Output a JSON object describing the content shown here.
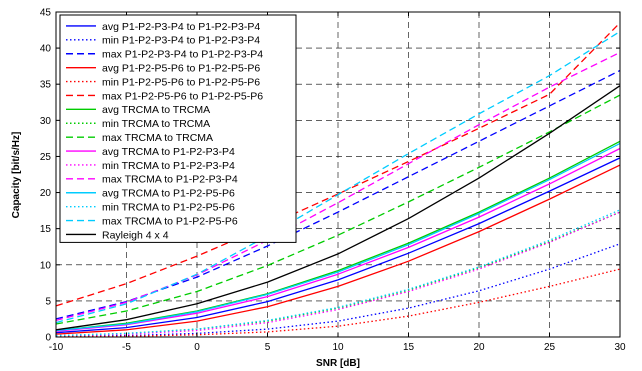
{
  "chart_data": {
    "type": "line",
    "title": "",
    "xlabel": "SNR [dB]",
    "ylabel": "Capacity [bit/s/Hz]",
    "xlim": [
      -10,
      30
    ],
    "ylim": [
      0,
      45
    ],
    "xticks": [
      -10,
      -5,
      0,
      5,
      10,
      15,
      20,
      25,
      30
    ],
    "yticks": [
      0,
      5,
      10,
      15,
      20,
      25,
      30,
      35,
      40,
      45
    ],
    "grid": true,
    "legend_position": "top-left",
    "x": [
      -10,
      -5,
      0,
      5,
      10,
      15,
      20,
      25,
      30
    ],
    "series": [
      {
        "name": "avg P1-P2-P3-P4 to P1-P2-P3-P4",
        "color": "#0000ff",
        "style": "solid",
        "values": [
          0.6,
          1.3,
          2.7,
          4.9,
          7.9,
          11.6,
          15.7,
          20.2,
          24.8
        ]
      },
      {
        "name": "min P1-P2-P3-P4 to P1-P2-P3-P4",
        "color": "#0000ff",
        "style": "dotted",
        "values": [
          0.1,
          0.2,
          0.5,
          1.1,
          2.2,
          4.0,
          6.4,
          9.4,
          12.9
        ]
      },
      {
        "name": "max P1-P2-P3-P4 to P1-P2-P3-P4",
        "color": "#0000ff",
        "style": "dashed",
        "values": [
          2.5,
          4.9,
          8.3,
          12.6,
          17.3,
          22.2,
          27.1,
          32.0,
          36.9
        ]
      },
      {
        "name": "avg P1-P2-P5-P6 to P1-P2-P5-P6",
        "color": "#ff0000",
        "style": "solid",
        "values": [
          0.4,
          1.0,
          2.2,
          4.2,
          7.0,
          10.5,
          14.6,
          19.1,
          23.8
        ]
      },
      {
        "name": "min P1-P2-P5-P6 to P1-P2-P5-P6",
        "color": "#ff0000",
        "style": "dotted",
        "values": [
          0.05,
          0.1,
          0.3,
          0.7,
          1.5,
          2.9,
          4.8,
          7.0,
          9.4
        ]
      },
      {
        "name": "max P1-P2-P5-P6 to P1-P2-P5-P6",
        "color": "#ff0000",
        "style": "dashed",
        "values": [
          4.3,
          7.4,
          11.2,
          15.4,
          19.8,
          24.3,
          28.9,
          33.6,
          43.5
        ]
      },
      {
        "name": "avg TRCMA to TRCMA",
        "color": "#00cc00",
        "style": "solid",
        "values": [
          0.9,
          1.9,
          3.6,
          6.0,
          9.2,
          13.0,
          17.3,
          22.0,
          27.1
        ]
      },
      {
        "name": "min TRCMA to TRCMA",
        "color": "#00cc00",
        "style": "dotted",
        "values": [
          0.2,
          0.5,
          1.1,
          2.2,
          4.0,
          6.5,
          9.6,
          13.2,
          17.3
        ]
      },
      {
        "name": "max TRCMA to TRCMA",
        "color": "#00cc00",
        "style": "dashed",
        "values": [
          1.8,
          3.6,
          6.3,
          9.9,
          14.1,
          18.7,
          23.5,
          28.4,
          33.5
        ]
      },
      {
        "name": "avg TRCMA to P1-P2-P3-P4",
        "color": "#ff00ff",
        "style": "solid",
        "values": [
          0.8,
          1.7,
          3.3,
          5.6,
          8.7,
          12.4,
          16.6,
          21.2,
          26.1
        ]
      },
      {
        "name": "min TRCMA to P1-P2-P3-P4",
        "color": "#ff00ff",
        "style": "dotted",
        "values": [
          0.2,
          0.4,
          0.9,
          2.0,
          3.8,
          6.3,
          9.4,
          13.1,
          17.3
        ]
      },
      {
        "name": "max TRCMA to P1-P2-P3-P4",
        "color": "#ff00ff",
        "style": "dashed",
        "values": [
          2.3,
          4.8,
          8.6,
          13.4,
          18.6,
          24.0,
          29.4,
          34.6,
          39.4
        ]
      },
      {
        "name": "avg TRCMA to P1-P2-P5-P6",
        "color": "#00ccff",
        "style": "solid",
        "values": [
          0.9,
          1.8,
          3.5,
          5.9,
          9.0,
          12.8,
          17.1,
          21.8,
          26.8
        ]
      },
      {
        "name": "min TRCMA to P1-P2-P5-P6",
        "color": "#00ccff",
        "style": "dotted",
        "values": [
          0.2,
          0.5,
          1.1,
          2.3,
          4.1,
          6.6,
          9.7,
          13.4,
          17.6
        ]
      },
      {
        "name": "max TRCMA to P1-P2-P5-P6",
        "color": "#00ccff",
        "style": "dashed",
        "values": [
          2.0,
          4.6,
          8.7,
          14.0,
          19.7,
          25.4,
          30.9,
          36.2,
          42.3
        ]
      },
      {
        "name": "Rayleigh 4 x 4",
        "color": "#000000",
        "style": "solid",
        "values": [
          1.0,
          2.4,
          4.6,
          7.6,
          11.5,
          16.4,
          22.0,
          28.2,
          34.8
        ]
      }
    ]
  }
}
